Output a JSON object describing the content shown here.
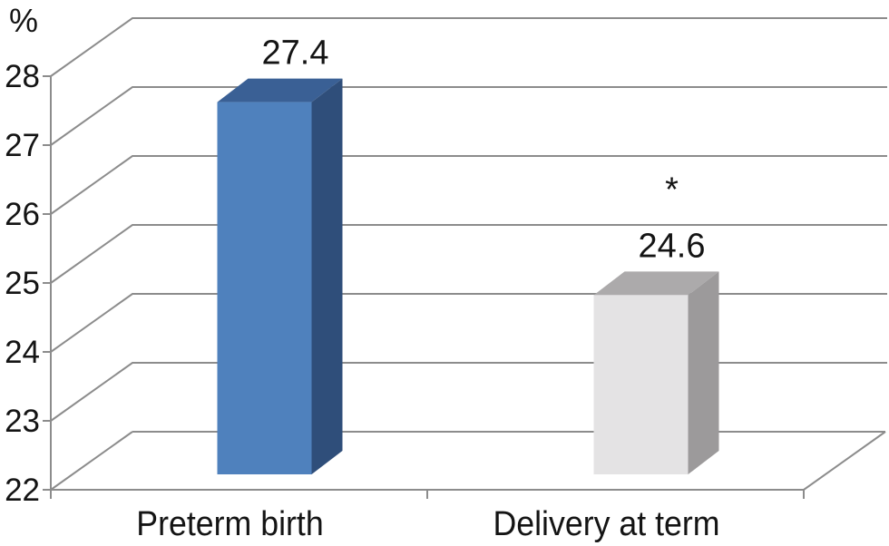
{
  "chart_data": {
    "type": "bar",
    "variant": "3d-clustered-column",
    "title": "",
    "xlabel": "",
    "ylabel": "%",
    "categories": [
      "Preterm birth",
      "Delivery at term"
    ],
    "values": [
      27.4,
      24.6
    ],
    "data_labels": [
      "27.4",
      "24.6"
    ],
    "annotations": [
      {
        "category_index": 1,
        "text": "*"
      }
    ],
    "ylim": [
      22,
      28
    ],
    "ytick_interval": 1,
    "yticks": [
      22,
      23,
      24,
      25,
      26,
      27,
      28
    ],
    "grid": true,
    "legend": false,
    "colors": {
      "bars": [
        {
          "front": "#4F81BD",
          "top": "#3A6095",
          "side": "#2F4E7A"
        },
        {
          "front": "#E4E3E4",
          "top": "#ACAAAB",
          "side": "#9C9A9B"
        }
      ],
      "grid": "#8C8C8C",
      "text": "#141414",
      "background": "#FFFFFF"
    }
  }
}
